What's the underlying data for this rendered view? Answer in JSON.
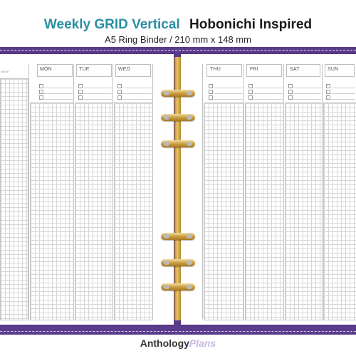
{
  "title": {
    "line1_part1": "Weekly GRID Vertical",
    "line1_part2": "Hobonichi Inspired",
    "line2": "A5 Ring Binder / 210 mm x 148 mm"
  },
  "left_page": {
    "corner_label": "WEEK",
    "days": [
      "MON",
      "TUE",
      "WED"
    ]
  },
  "right_page": {
    "days": [
      "THU",
      "FRI",
      "SAT",
      "SUN"
    ]
  },
  "brand": {
    "part1": "Anthology",
    "part2": "Plans"
  },
  "colors": {
    "title_accent": "#2a8fa3",
    "binder_purple": "#5b3b8c",
    "ring_gold": "#d2a640",
    "brand_lavender": "#c9b8e6"
  }
}
